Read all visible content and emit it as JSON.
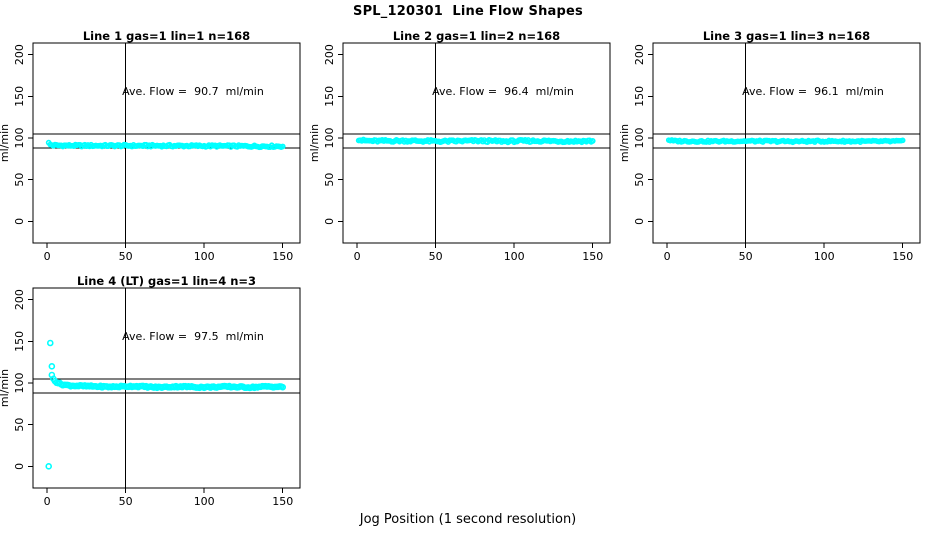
{
  "figure_title": "SPL_120301  Line Flow Shapes",
  "x_axis_label": "Jog Position (1 second resolution)",
  "y_axis_label": "ml/min",
  "colors": {
    "marker": "#00ffff",
    "axis": "#000000",
    "background": "#ffffff"
  },
  "axes": {
    "xlim": [
      -9,
      161
    ],
    "ylim": [
      -26,
      214
    ],
    "xticks": [
      0,
      50,
      100,
      150
    ],
    "yticks": [
      0,
      50,
      100,
      150,
      200
    ],
    "ref_lines_horizontal": [
      105,
      88
    ],
    "ref_lines_vertical": [
      50
    ],
    "grid": false
  },
  "chart_data": [
    {
      "type": "scatter",
      "title": "Line 1 gas=1 lin=1 n=168",
      "annotation": "Ave. Flow =  90.7  ml/min",
      "ave_flow_ml_min": 90.7,
      "line": 1,
      "gas": 1,
      "lin": 1,
      "n": 168,
      "xlabel": "",
      "ylabel": "ml/min",
      "series": {
        "name": "flow",
        "x_start": 1,
        "x_end": 150,
        "n_points": 150,
        "control_points": [
          [
            1,
            93.8
          ],
          [
            2,
            92.0
          ],
          [
            4,
            91.2
          ],
          [
            15,
            90.9
          ],
          [
            50,
            90.8
          ],
          [
            90,
            90.6
          ],
          [
            130,
            90.2
          ],
          [
            150,
            90.1
          ]
        ],
        "noise_amplitude": 1.2,
        "marker_radius_px": 2.1,
        "seed": 1,
        "outliers": []
      }
    },
    {
      "type": "scatter",
      "title": "Line 2 gas=1 lin=2 n=168",
      "annotation": "Ave. Flow =  96.4  ml/min",
      "ave_flow_ml_min": 96.4,
      "line": 2,
      "gas": 1,
      "lin": 2,
      "n": 168,
      "xlabel": "",
      "ylabel": "ml/min",
      "series": {
        "name": "flow",
        "x_start": 1,
        "x_end": 150,
        "n_points": 150,
        "control_points": [
          [
            1,
            98.2
          ],
          [
            3,
            97.0
          ],
          [
            10,
            96.4
          ],
          [
            30,
            96.7
          ],
          [
            55,
            96.0
          ],
          [
            75,
            96.6
          ],
          [
            95,
            96.1
          ],
          [
            115,
            96.6
          ],
          [
            135,
            96.1
          ],
          [
            150,
            96.4
          ]
        ],
        "noise_amplitude": 1.4,
        "marker_radius_px": 2.1,
        "seed": 2,
        "outliers": []
      }
    },
    {
      "type": "scatter",
      "title": "Line 3 gas=1 lin=3 n=168",
      "annotation": "Ave. Flow =  96.1  ml/min",
      "ave_flow_ml_min": 96.1,
      "line": 3,
      "gas": 1,
      "lin": 3,
      "n": 168,
      "xlabel": "",
      "ylabel": "ml/min",
      "series": {
        "name": "flow",
        "x_start": 1,
        "x_end": 150,
        "n_points": 150,
        "control_points": [
          [
            1,
            97.6
          ],
          [
            4,
            96.4
          ],
          [
            25,
            96.0
          ],
          [
            50,
            96.3
          ],
          [
            80,
            95.9
          ],
          [
            105,
            96.2
          ],
          [
            130,
            95.9
          ],
          [
            150,
            96.1
          ]
        ],
        "noise_amplitude": 1.1,
        "marker_radius_px": 2.0,
        "seed": 3,
        "outliers": []
      }
    },
    {
      "type": "scatter",
      "title": "Line 4 (LT) gas=1 lin=4 n=3",
      "annotation": "Ave. Flow =  97.5  ml/min",
      "ave_flow_ml_min": 97.5,
      "line": 4,
      "gas": 1,
      "lin": 4,
      "n": 3,
      "xlabel": "",
      "ylabel": "ml/min",
      "series": {
        "name": "flow",
        "x_start": 3,
        "x_end": 150,
        "n_points": 148,
        "control_points": [
          [
            3,
            109
          ],
          [
            4,
            105
          ],
          [
            6,
            101
          ],
          [
            9,
            98.5
          ],
          [
            14,
            97
          ],
          [
            25,
            96.2
          ],
          [
            40,
            95.4
          ],
          [
            55,
            96.2
          ],
          [
            70,
            94.8
          ],
          [
            85,
            95.8
          ],
          [
            100,
            94.9
          ],
          [
            115,
            95.6
          ],
          [
            130,
            94.8
          ],
          [
            140,
            95.8
          ],
          [
            150,
            95.2
          ]
        ],
        "noise_amplitude": 0.9,
        "marker_radius_px": 2.5,
        "seed": 4,
        "outliers": [
          [
            1,
            0
          ],
          [
            2,
            148
          ],
          [
            3,
            120
          ]
        ]
      }
    }
  ]
}
